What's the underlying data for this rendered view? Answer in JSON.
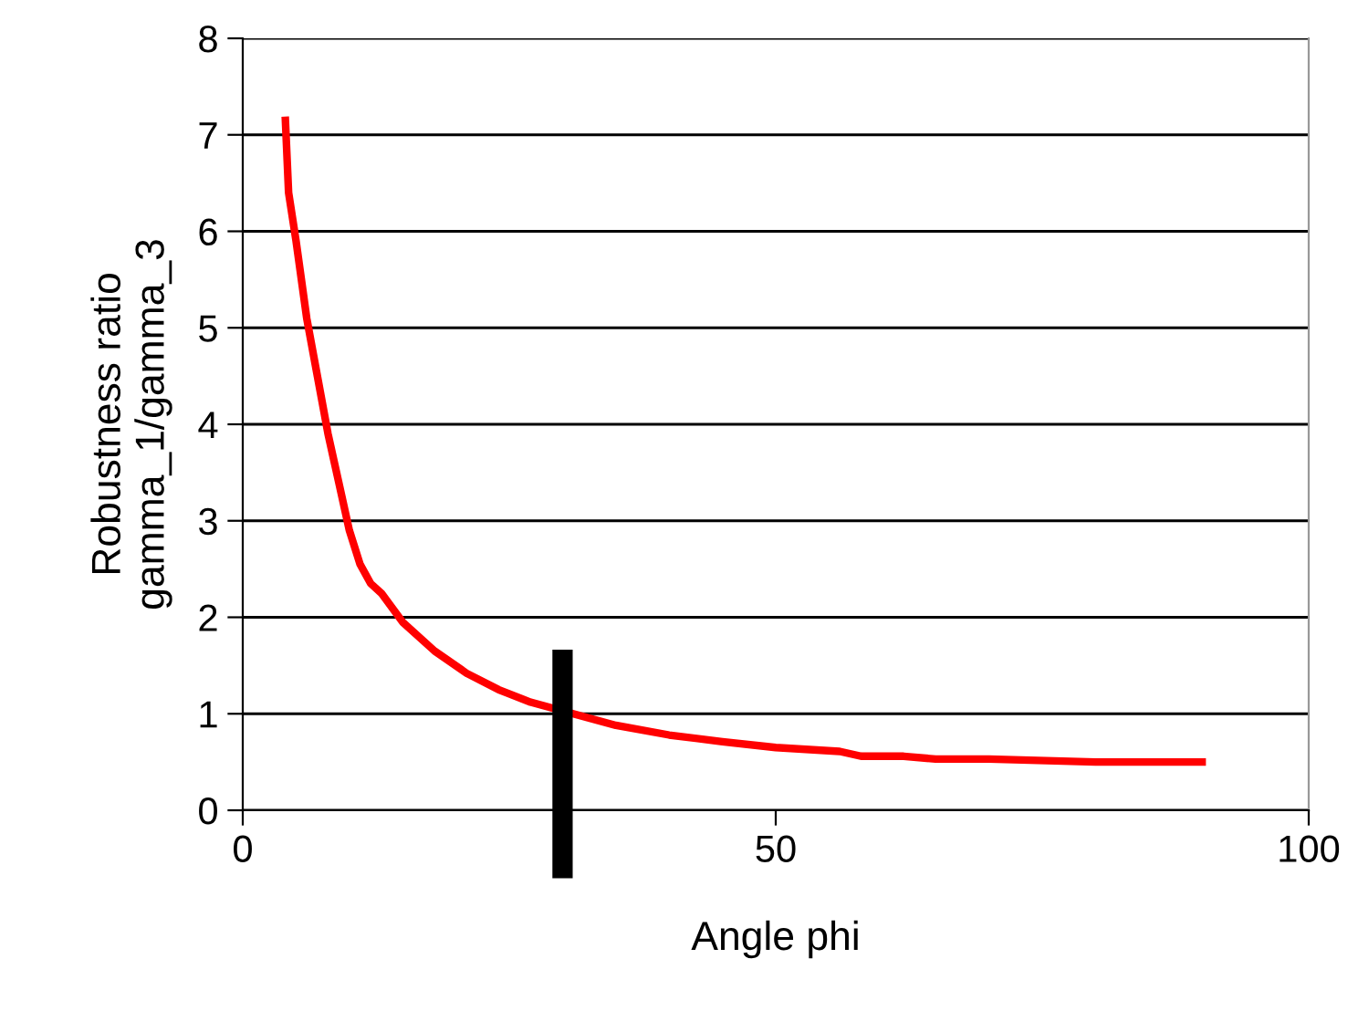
{
  "chart_data": {
    "type": "line",
    "xlabel": "Angle phi",
    "ylabel": "Robustness ratio\ngamma_1/gamma_3",
    "xlim": [
      0,
      100
    ],
    "xticks": [
      0,
      50,
      100
    ],
    "ylim": [
      0,
      8
    ],
    "yticks": [
      0,
      1,
      2,
      3,
      4,
      5,
      6,
      7,
      8
    ],
    "grid": "y",
    "legend": false,
    "marker": "none",
    "line_style": "solid",
    "series": [
      {
        "color": "#ff0000",
        "x": [
          4,
          4.3,
          5,
          6,
          7,
          8,
          9,
          10,
          11,
          12,
          13,
          15,
          18,
          21,
          24,
          27,
          35,
          40,
          45,
          50,
          56,
          58,
          62,
          65,
          70,
          80,
          90
        ],
        "values": [
          7.15,
          6.4,
          5.9,
          5.1,
          4.5,
          3.9,
          3.4,
          2.9,
          2.55,
          2.35,
          2.25,
          1.95,
          1.65,
          1.42,
          1.25,
          1.12,
          0.88,
          0.78,
          0.71,
          0.65,
          0.61,
          0.56,
          0.56,
          0.53,
          0.53,
          0.5,
          0.5
        ]
      }
    ],
    "ref_lines": [
      {
        "axis": "x",
        "value": 30,
        "color": "#000000"
      }
    ]
  }
}
